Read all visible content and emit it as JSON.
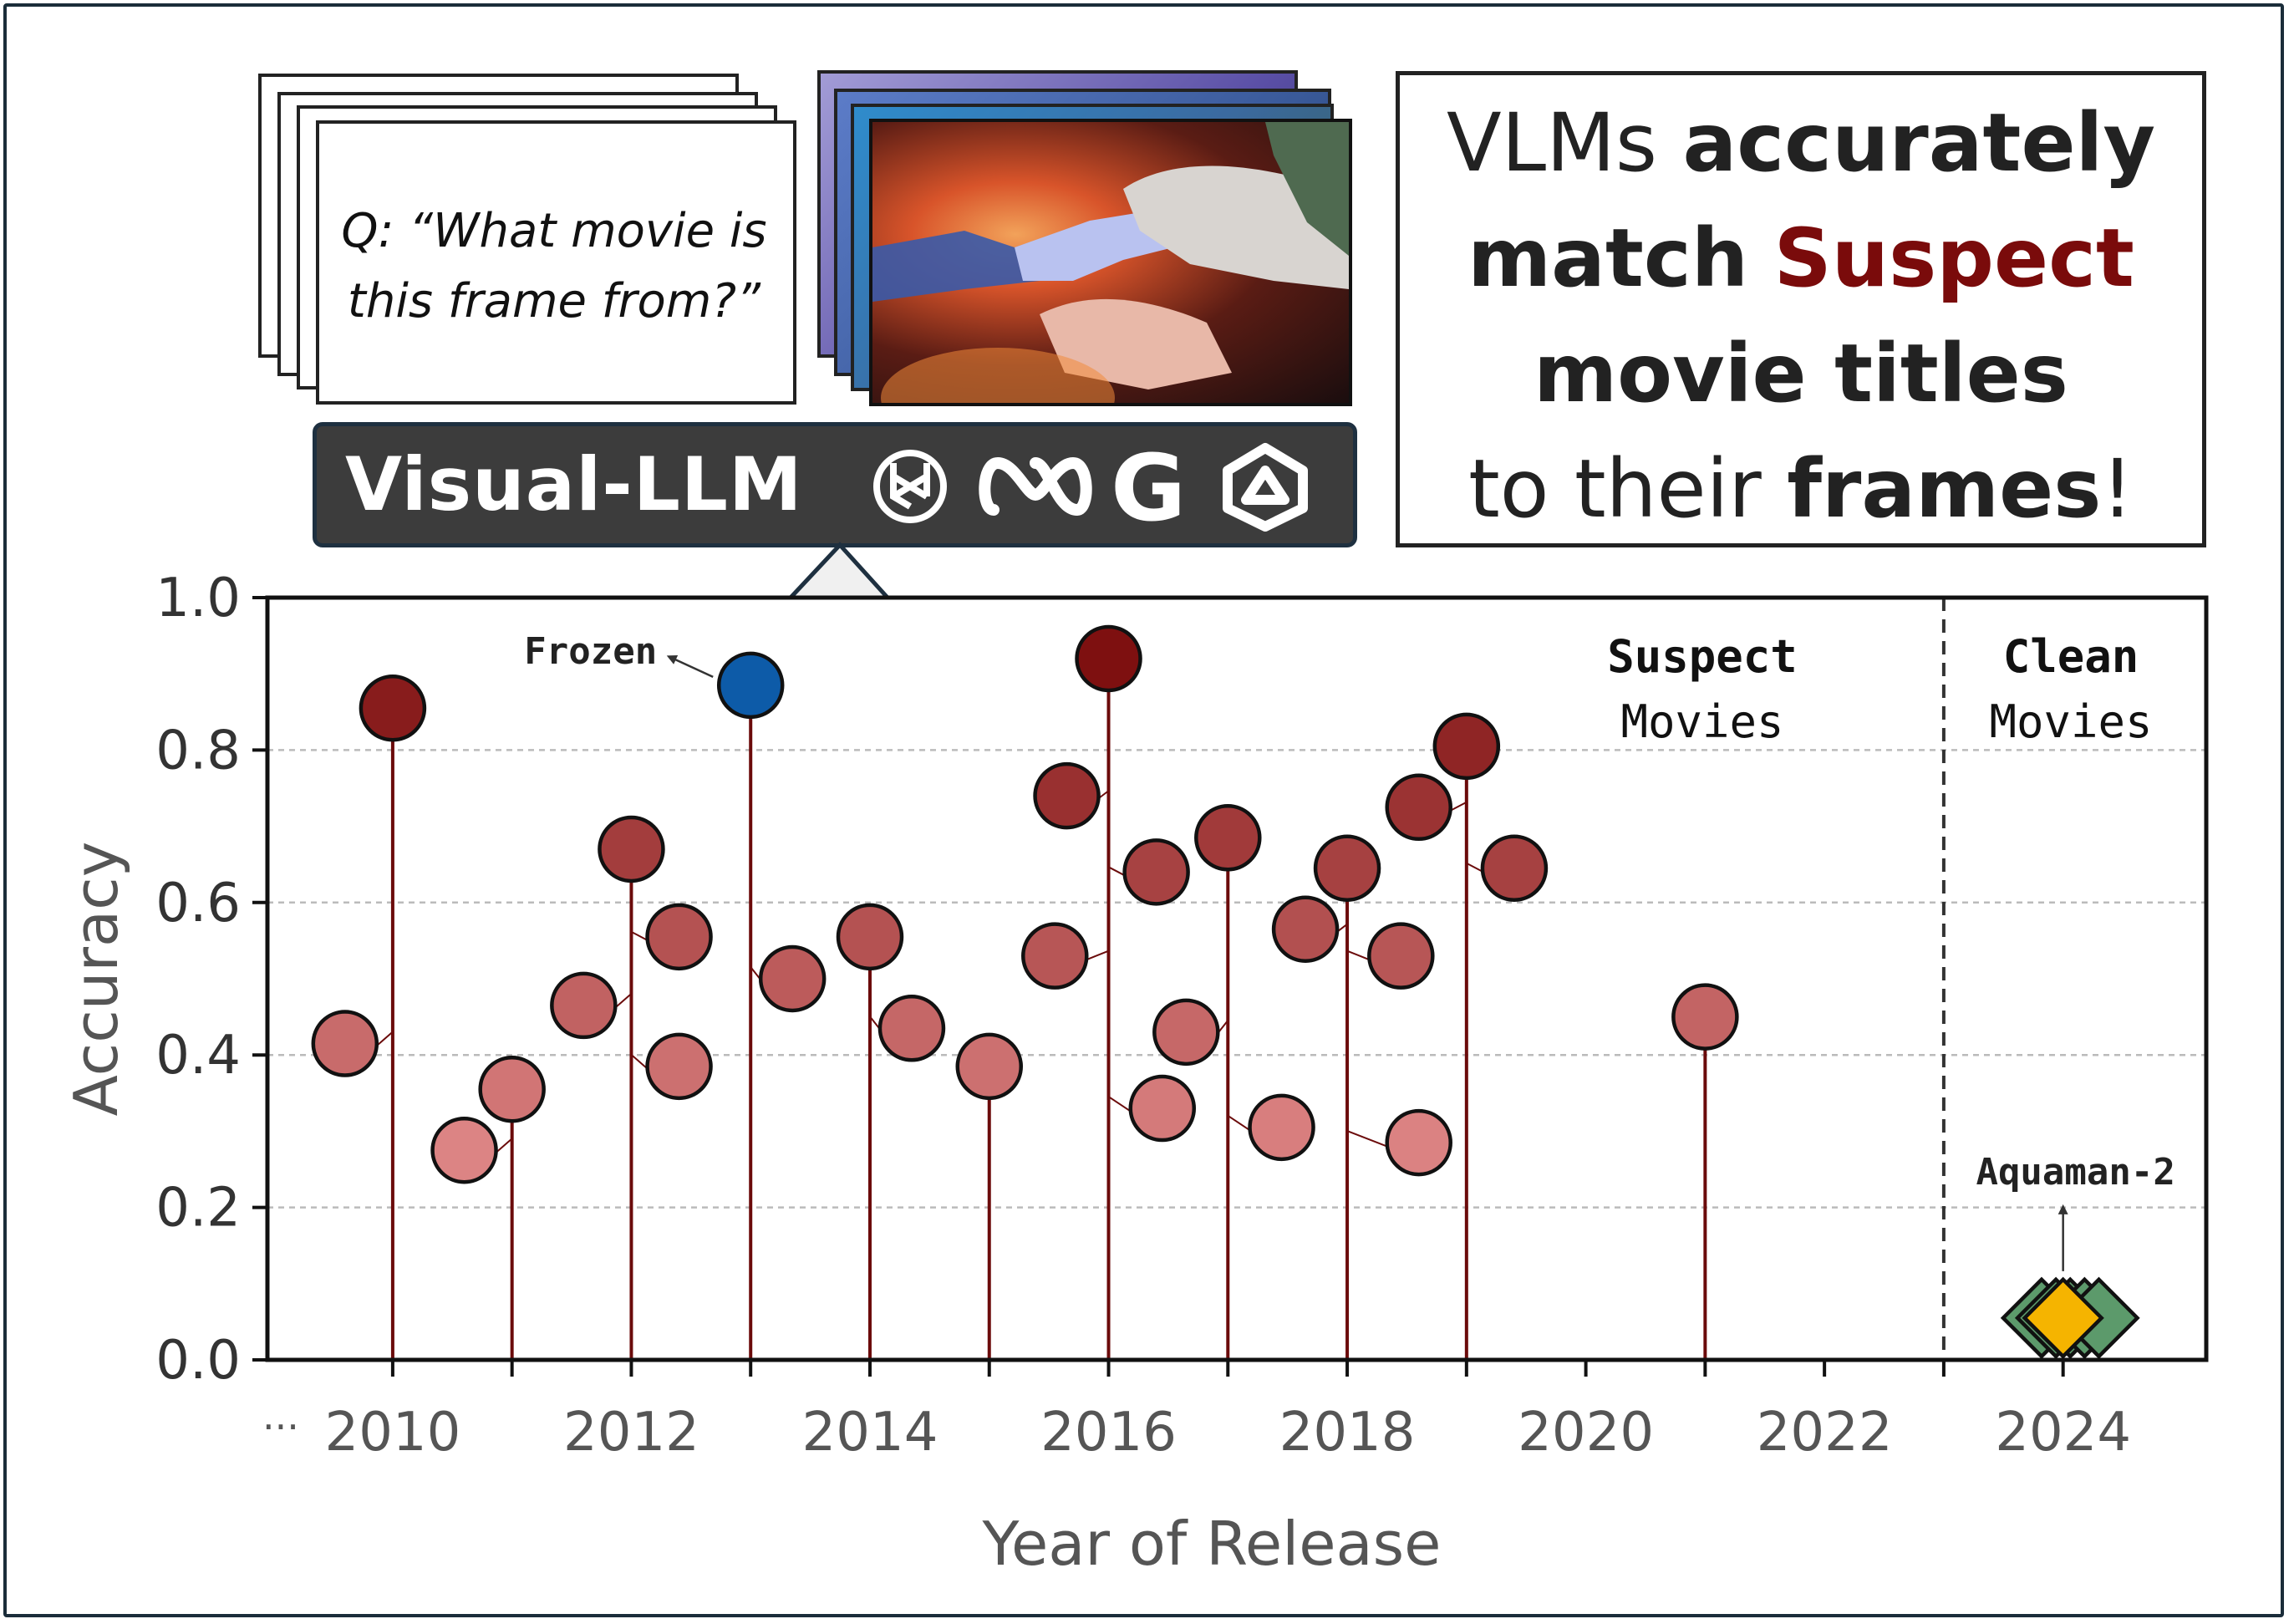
{
  "prompt": {
    "question_line1": "Q: “What movie is",
    "question_line2": "this frame from?”"
  },
  "model_banner": {
    "label": "Visual-LLM",
    "logos": [
      "openai-logo",
      "meta-logo",
      "google-logo",
      "qwen-logo"
    ],
    "logo_glyphs": {
      "google": "G"
    }
  },
  "headline": {
    "t1": "VLMs",
    "t2": "accurately",
    "t3": "match",
    "t4": "Suspect",
    "t5": "movie titles",
    "t6": "to their",
    "t7": "frames",
    "t8": "!"
  },
  "colors": {
    "suspect_dark": "#7a0b0b",
    "frozen": "#0d5ba8",
    "clean_green": "#5c9a6b",
    "aquaman": "#f5b400",
    "stem": "#6b0b0b"
  },
  "chart_data": {
    "type": "scatter",
    "xlabel": "Year of Release",
    "ylabel": "Accuracy",
    "xlim": [
      2008.95,
      2025.2
    ],
    "ylim": [
      0.0,
      1.0
    ],
    "x_ticks": [
      2010,
      2011,
      2012,
      2013,
      2014,
      2015,
      2016,
      2017,
      2018,
      2019,
      2020,
      2021,
      2022,
      2023,
      2024
    ],
    "x_tick_labels": [
      {
        "x": 2010,
        "label": "2010"
      },
      {
        "x": 2012,
        "label": "2012"
      },
      {
        "x": 2014,
        "label": "2014"
      },
      {
        "x": 2016,
        "label": "2016"
      },
      {
        "x": 2018,
        "label": "2018"
      },
      {
        "x": 2020,
        "label": "2020"
      },
      {
        "x": 2022,
        "label": "2022"
      },
      {
        "x": 2024,
        "label": "2024"
      }
    ],
    "x_prefix": "···",
    "y_ticks": [
      {
        "y": 0.0,
        "label": "0.0"
      },
      {
        "y": 0.2,
        "label": "0.2"
      },
      {
        "y": 0.4,
        "label": "0.4"
      },
      {
        "y": 0.6,
        "label": "0.6"
      },
      {
        "y": 0.8,
        "label": "0.8"
      },
      {
        "y": 1.0,
        "label": "1.0"
      }
    ],
    "grid": "horizontal dashed",
    "divider_year": 2023,
    "regions": [
      {
        "name": "Suspect",
        "sub": "Movies"
      },
      {
        "name": "Clean",
        "sub": "Movies"
      }
    ],
    "stems": [
      {
        "year": 2010,
        "top": 0.855
      },
      {
        "year": 2011,
        "top": 0.355
      },
      {
        "year": 2012,
        "top": 0.67
      },
      {
        "year": 2013,
        "top": 0.885
      },
      {
        "year": 2014,
        "top": 0.555
      },
      {
        "year": 2015,
        "top": 0.385
      },
      {
        "year": 2016,
        "top": 0.92
      },
      {
        "year": 2017,
        "top": 0.685
      },
      {
        "year": 2018,
        "top": 0.645
      },
      {
        "year": 2019,
        "top": 0.805
      },
      {
        "year": 2021,
        "top": 0.45
      }
    ],
    "suspect_points": [
      {
        "year": 2010,
        "x": 2009.6,
        "y": 0.415
      },
      {
        "year": 2010,
        "x": 2010.0,
        "y": 0.855
      },
      {
        "year": 2011,
        "x": 2010.6,
        "y": 0.275
      },
      {
        "year": 2011,
        "x": 2011.0,
        "y": 0.355
      },
      {
        "year": 2012,
        "x": 2011.6,
        "y": 0.465
      },
      {
        "year": 2012,
        "x": 2012.0,
        "y": 0.67
      },
      {
        "year": 2012,
        "x": 2012.4,
        "y": 0.555
      },
      {
        "year": 2012,
        "x": 2012.4,
        "y": 0.385
      },
      {
        "year": 2013,
        "x": 2013.35,
        "y": 0.5
      },
      {
        "year": 2014,
        "x": 2014.0,
        "y": 0.555
      },
      {
        "year": 2014,
        "x": 2014.35,
        "y": 0.435
      },
      {
        "year": 2015,
        "x": 2015.0,
        "y": 0.385
      },
      {
        "year": 2016,
        "x": 2015.55,
        "y": 0.53
      },
      {
        "year": 2016,
        "x": 2015.65,
        "y": 0.74
      },
      {
        "year": 2016,
        "x": 2016.0,
        "y": 0.92
      },
      {
        "year": 2016,
        "x": 2016.4,
        "y": 0.64
      },
      {
        "year": 2016,
        "x": 2016.45,
        "y": 0.33
      },
      {
        "year": 2017,
        "x": 2016.65,
        "y": 0.43
      },
      {
        "year": 2017,
        "x": 2017.0,
        "y": 0.685
      },
      {
        "year": 2017,
        "x": 2017.45,
        "y": 0.305
      },
      {
        "year": 2018,
        "x": 2017.65,
        "y": 0.565
      },
      {
        "year": 2018,
        "x": 2018.0,
        "y": 0.645
      },
      {
        "year": 2018,
        "x": 2018.45,
        "y": 0.53
      },
      {
        "year": 2018,
        "x": 2018.6,
        "y": 0.285
      },
      {
        "year": 2019,
        "x": 2018.6,
        "y": 0.725
      },
      {
        "year": 2019,
        "x": 2019.0,
        "y": 0.805
      },
      {
        "year": 2019,
        "x": 2019.4,
        "y": 0.645
      },
      {
        "year": 2021,
        "x": 2021.0,
        "y": 0.45
      }
    ],
    "frozen": {
      "label": "Frozen",
      "x": 2013.0,
      "y": 0.885
    },
    "clean_points": [
      {
        "x": 2023.82,
        "y": 0.055
      },
      {
        "x": 2023.94,
        "y": 0.055
      },
      {
        "x": 2024.06,
        "y": 0.055
      },
      {
        "x": 2024.18,
        "y": 0.055
      },
      {
        "x": 2024.3,
        "y": 0.055
      }
    ],
    "aquaman": {
      "label": "Aquaman-2",
      "x": 2024.0,
      "y": 0.055
    }
  }
}
